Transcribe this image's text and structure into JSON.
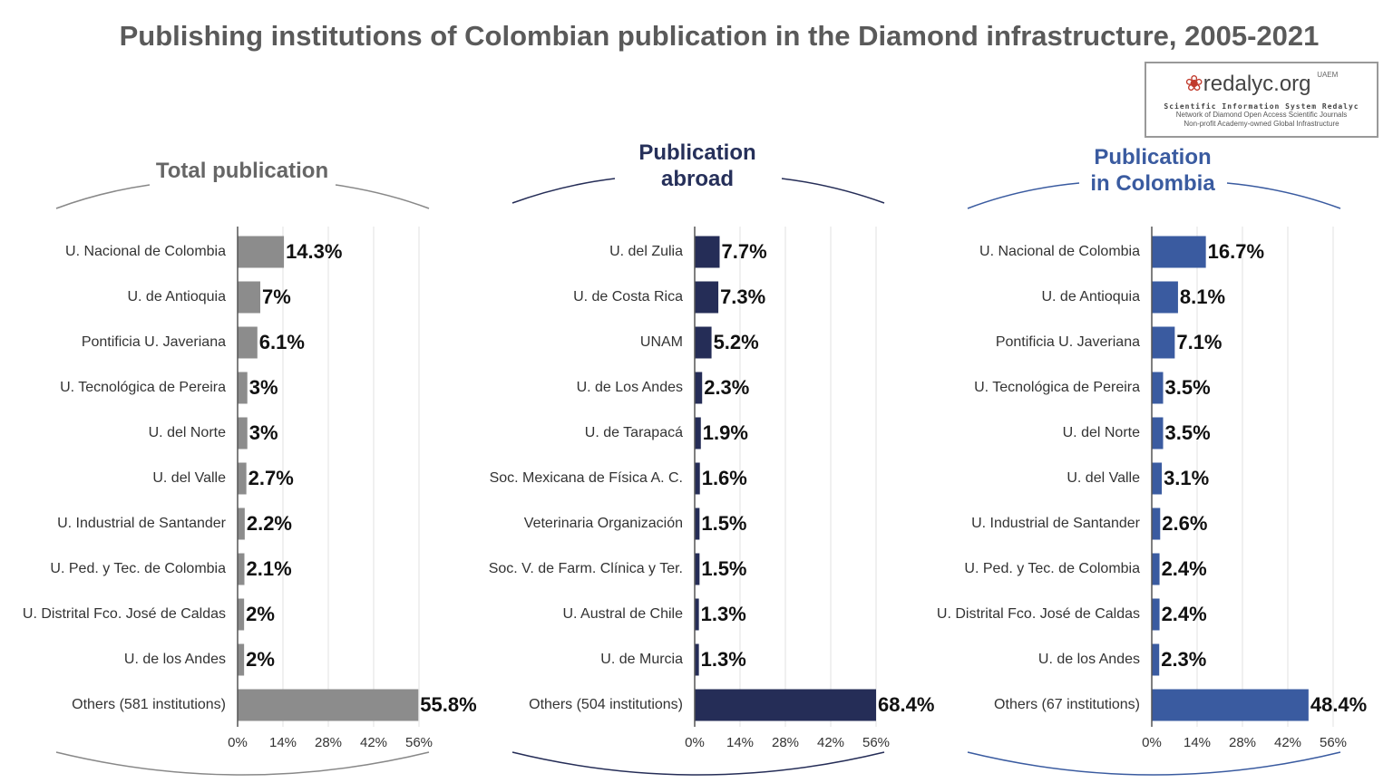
{
  "title": "Publishing institutions of Colombian publication in the Diamond infrastructure, 2005-2021",
  "logo": {
    "name": "redalyc.org",
    "badge": "UAEM",
    "line1": "Scientific Information System Redalyc",
    "line2": "Network of Diamond Open Access Scientific Journals",
    "line3": "Non-profit Academy-owned Global Infrastructure"
  },
  "chart_data": [
    {
      "type": "hbar",
      "title": "Total publication",
      "color": "#8c8c8c",
      "categories": [
        "U. Nacional de Colombia",
        "U. de Antioquia",
        "Pontificia U. Javeriana",
        "U. Tecnológica de Pereira",
        "U. del Norte",
        "U. del Valle",
        "U. Industrial de Santander",
        "U. Ped. y Tec. de Colombia",
        "U. Distrital Fco. José de Caldas",
        "U. de los Andes",
        "Others (581 institutions)"
      ],
      "values": [
        14.3,
        7,
        6.1,
        3,
        3,
        2.7,
        2.2,
        2.1,
        2,
        2,
        55.8
      ],
      "value_labels": [
        "14.3%",
        "7%",
        "6.1%",
        "3%",
        "3%",
        "2.7%",
        "2.2%",
        "2.1%",
        "2%",
        "2%",
        "55.8%"
      ],
      "xlim": [
        0,
        56
      ],
      "xticks": [
        {
          "value": 0,
          "label": "0%"
        },
        {
          "value": 14,
          "label": "14%"
        },
        {
          "value": 28,
          "label": "28%"
        },
        {
          "value": 42,
          "label": "42%"
        },
        {
          "value": 56,
          "label": "56%"
        }
      ],
      "grid": true
    },
    {
      "type": "hbar",
      "title": "Publication abroad",
      "color": "#252d57",
      "categories": [
        "U. del Zulia",
        "U. de Costa Rica",
        "UNAM",
        "U. de Los Andes",
        "U. de Tarapacá",
        "Soc. Mexicana de Física A. C.",
        "Veterinaria Organización",
        "Soc. V. de Farm. Clínica y Ter.",
        "U. Austral de Chile",
        "U. de Murcia",
        "Others (504 institutions)"
      ],
      "values": [
        7.7,
        7.3,
        5.2,
        2.3,
        1.9,
        1.6,
        1.5,
        1.5,
        1.3,
        1.3,
        68.4
      ],
      "value_labels": [
        "7.7%",
        "7.3%",
        "5.2%",
        "2.3%",
        "1.9%",
        "1.6%",
        "1.5%",
        "1.5%",
        "1.3%",
        "1.3%",
        "68.4%"
      ],
      "xlim": [
        0,
        56
      ],
      "xticks": [
        {
          "value": 0,
          "label": "0%"
        },
        {
          "value": 14,
          "label": "14%"
        },
        {
          "value": 28,
          "label": "28%"
        },
        {
          "value": 42,
          "label": "42%"
        },
        {
          "value": 56,
          "label": "56%"
        }
      ],
      "grid": true
    },
    {
      "type": "hbar",
      "title": "Publication in Colombia",
      "color": "#3a5ba0",
      "categories": [
        "U. Nacional de Colombia",
        "U. de Antioquia",
        "Pontificia U. Javeriana",
        "U. Tecnológica de Pereira",
        "U. del Norte",
        "U. del Valle",
        "U. Industrial de Santander",
        "U. Ped. y Tec. de Colombia",
        "U. Distrital Fco. José de Caldas",
        "U. de los Andes",
        "Others (67 institutions)"
      ],
      "values": [
        16.7,
        8.1,
        7.1,
        3.5,
        3.5,
        3.1,
        2.6,
        2.4,
        2.4,
        2.3,
        48.4
      ],
      "value_labels": [
        "16.7%",
        "8.1%",
        "7.1%",
        "3.5%",
        "3.5%",
        "3.1%",
        "2.6%",
        "2.4%",
        "2.4%",
        "2.3%",
        "48.4%"
      ],
      "xlim": [
        0,
        56
      ],
      "xticks": [
        {
          "value": 0,
          "label": "0%"
        },
        {
          "value": 14,
          "label": "14%"
        },
        {
          "value": 28,
          "label": "28%"
        },
        {
          "value": 42,
          "label": "42%"
        },
        {
          "value": 56,
          "label": "56%"
        }
      ],
      "grid": true
    }
  ]
}
